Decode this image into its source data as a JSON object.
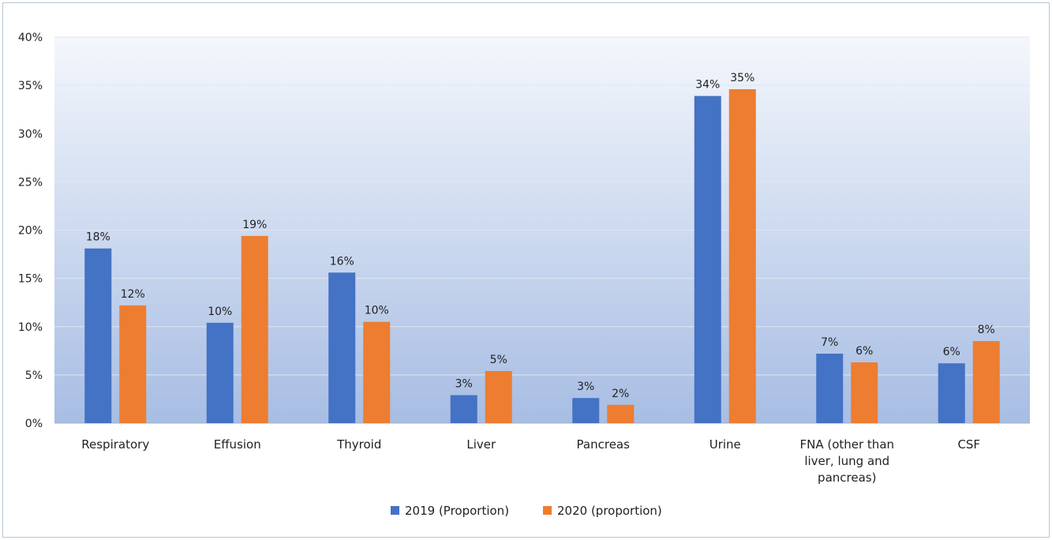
{
  "chart_data": {
    "type": "bar",
    "categories": [
      [
        "Respiratory"
      ],
      [
        "Effusion"
      ],
      [
        "Thyroid"
      ],
      [
        "Liver"
      ],
      [
        "Pancreas"
      ],
      [
        "Urine"
      ],
      [
        "FNA (other than",
        "liver, lung and",
        "pancreas)"
      ],
      [
        "CSF"
      ]
    ],
    "series": [
      {
        "name": "2019 (Proportion)",
        "color": "#4472c4",
        "values": [
          18.1,
          10.4,
          15.6,
          2.9,
          2.6,
          33.9,
          7.2,
          6.2
        ],
        "labels": [
          "18%",
          "10%",
          "16%",
          "3%",
          "3%",
          "34%",
          "7%",
          "6%"
        ]
      },
      {
        "name": "2020 (proportion)",
        "color": "#ed7d31",
        "values": [
          12.2,
          19.4,
          10.5,
          5.4,
          1.9,
          34.6,
          6.3,
          8.5
        ],
        "labels": [
          "12%",
          "19%",
          "10%",
          "5%",
          "2%",
          "35%",
          "6%",
          "8%"
        ]
      }
    ],
    "ylim": [
      0,
      40
    ],
    "yticks": [
      "0%",
      "5%",
      "10%",
      "15%",
      "20%",
      "25%",
      "30%",
      "35%",
      "40%"
    ],
    "grid": true,
    "legend_position": "bottom",
    "plot_background": [
      "#f4f7fc",
      "#a7bde3"
    ],
    "title": "",
    "xlabel": "",
    "ylabel": ""
  }
}
